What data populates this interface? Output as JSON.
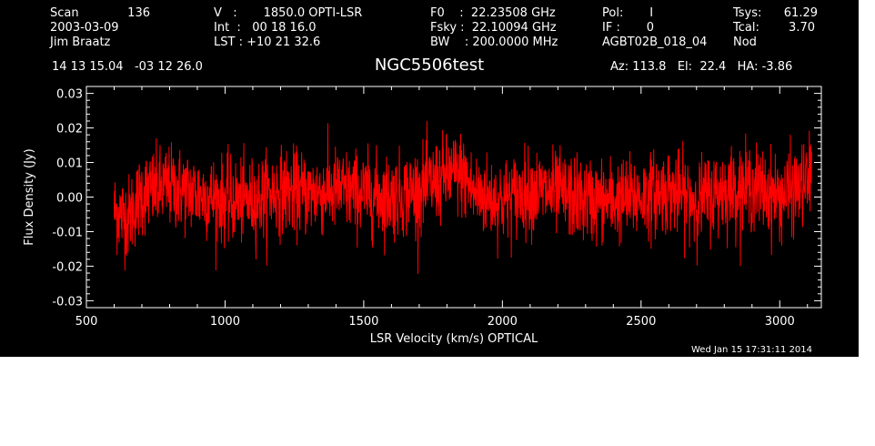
{
  "header": {
    "col1": [
      "Scan",
      "2003-03-09",
      "Jim Braatz"
    ],
    "scan_number": "136",
    "col2": [
      "V   :       1850.0 OPTI-LSR",
      "Int  :   00 18 16.0",
      "LST : +10 21 32.6"
    ],
    "col3": [
      "F0    :  22.23508 GHz",
      "Fsky :  22.10094 GHz",
      "BW    : 200.0000 MHz"
    ],
    "col4": [
      "Pol:       I",
      "IF :       0",
      "AGBT02B_018_04"
    ],
    "col5_labels": [
      "Tsys:",
      "Tcal:",
      "Nod"
    ],
    "col5_values": [
      "61.29",
      "3.70",
      ""
    ],
    "coords": "14 13 15.04   -03 12 26.0",
    "pointing": "Az: 113.8   El:  22.4   HA: -3.86"
  },
  "colors": {
    "background": "#000000",
    "foreground": "#ffffff",
    "series": "#ff0000"
  },
  "chart_data": {
    "type": "line",
    "title": "NGC5506test",
    "xlabel": "LSR Velocity (km/s) OPTICAL",
    "ylabel": "Flux Density (Jy)",
    "xlim": [
      500,
      3150
    ],
    "ylim": [
      -0.032,
      0.032
    ],
    "xticks": [
      500,
      1000,
      1500,
      2000,
      2500,
      3000
    ],
    "xtick_labels": [
      "500",
      "1000",
      "1500",
      "2000",
      "2500",
      "3000"
    ],
    "yticks": [
      -0.03,
      -0.02,
      -0.01,
      0.0,
      0.01,
      0.02,
      0.03
    ],
    "ytick_labels": [
      "-0.03",
      "-0.02",
      "-0.01",
      "0.00",
      "0.01",
      "0.02",
      "0.03"
    ],
    "grid": false,
    "series": [
      {
        "x_start": 600,
        "x_end": 3115,
        "noise_rms": 0.006,
        "baseline_x": [
          600,
          650,
          700,
          800,
          900,
          1000,
          1100,
          1200,
          1300,
          1400,
          1500,
          1600,
          1700,
          1800,
          1850,
          1900,
          2000,
          2100,
          2200,
          2300,
          2400,
          2500,
          2600,
          2700,
          2800,
          2900,
          3000,
          3100,
          3115
        ],
        "baseline_y": [
          -0.004,
          -0.006,
          0.001,
          0.003,
          0.001,
          -0.001,
          -0.001,
          0.002,
          0.001,
          0.002,
          0.001,
          0.0,
          0.002,
          0.006,
          0.007,
          0.001,
          -0.001,
          0.002,
          0.001,
          -0.001,
          -0.001,
          0.0,
          0.002,
          -0.001,
          0.002,
          0.003,
          0.0,
          0.004,
          0.008
        ]
      }
    ]
  },
  "timestamp": "Wed Jan 15 17:31:11 2014"
}
